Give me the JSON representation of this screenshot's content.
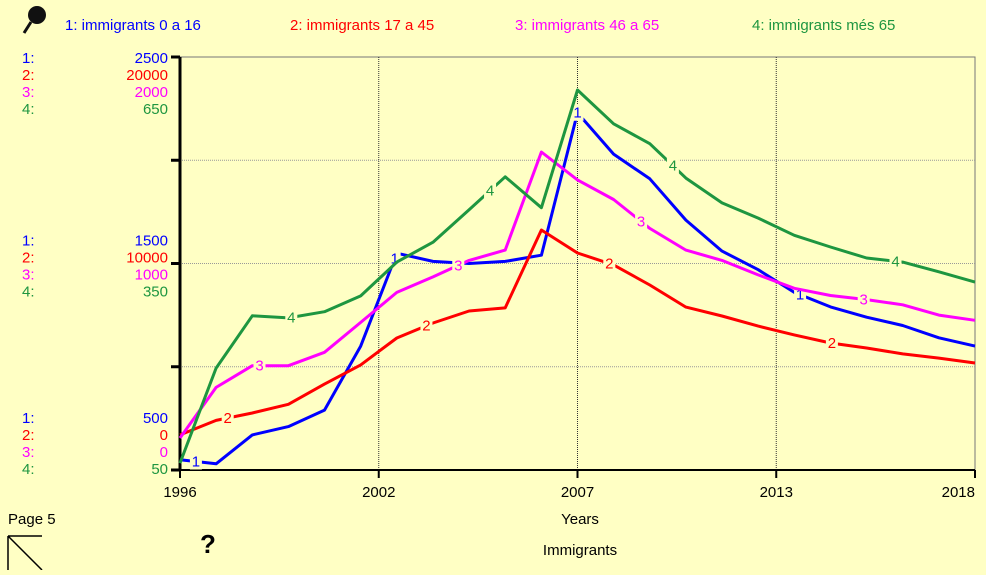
{
  "chart_data": {
    "type": "line",
    "page_label": "Page 5",
    "title": "Immigrants",
    "help_icon": "?",
    "xlabel": "Years",
    "x": [
      1996,
      1997,
      1998,
      1999,
      2000,
      2001,
      2002,
      2003,
      2004,
      2005,
      2006,
      2007,
      2008,
      2009,
      2010,
      2011,
      2012,
      2013,
      2014,
      2015,
      2016,
      2017,
      2018
    ],
    "xlim": [
      1996,
      2018
    ],
    "xticks": [
      1996,
      {
        "value": 2001.5,
        "label": "2002"
      },
      2007,
      {
        "value": 2012.5,
        "label": "2013"
      },
      2018
    ],
    "grid": true,
    "grid_yticks": [
      500,
      1000,
      1500,
      2000,
      2500
    ],
    "series": [
      {
        "name": "1: immigrants 0 a 16",
        "axis_prefix": "1:",
        "marker": "1",
        "color": "#0000ff",
        "ylim": [
          500,
          2500
        ],
        "yticks": [
          500,
          1500,
          2500
        ],
        "values": [
          550,
          530,
          670,
          710,
          790,
          1100,
          1550,
          1510,
          1500,
          1510,
          1540,
          2230,
          2030,
          1910,
          1710,
          1560,
          1470,
          1360,
          1290,
          1240,
          1200,
          1140,
          1100
        ]
      },
      {
        "name": "2: immigrants 17 a 45",
        "axis_prefix": "2:",
        "marker": "2",
        "color": "#ff0000",
        "ylim": [
          0,
          20000
        ],
        "yticks": [
          0,
          10000,
          20000
        ],
        "values": [
          1700,
          2400,
          2760,
          3180,
          4160,
          5090,
          6390,
          7120,
          7700,
          7850,
          11620,
          10510,
          9930,
          8960,
          7890,
          7460,
          6970,
          6540,
          6150,
          5910,
          5620,
          5420,
          5180
        ]
      },
      {
        "name": "3: immigrants 46 a 65",
        "axis_prefix": "3:",
        "marker": "3",
        "color": "#ff00ff",
        "ylim": [
          0,
          2000
        ],
        "yticks": [
          0,
          1000,
          2000
        ],
        "values": [
          155,
          400,
          505,
          505,
          570,
          715,
          860,
          935,
          1015,
          1065,
          1540,
          1405,
          1310,
          1170,
          1065,
          1015,
          945,
          880,
          845,
          825,
          800,
          750,
          725
        ]
      },
      {
        "name": "4: immigrants més 65",
        "axis_prefix": "4:",
        "marker": "4",
        "color": "#1e9640",
        "ylim": [
          50,
          650
        ],
        "yticks": [
          50,
          350,
          650
        ],
        "values": [
          60,
          198,
          274,
          271,
          280,
          303,
          352,
          381,
          428,
          476,
          431,
          602,
          553,
          524,
          474,
          438,
          416,
          391,
          374,
          358,
          352,
          338,
          323
        ]
      }
    ]
  }
}
